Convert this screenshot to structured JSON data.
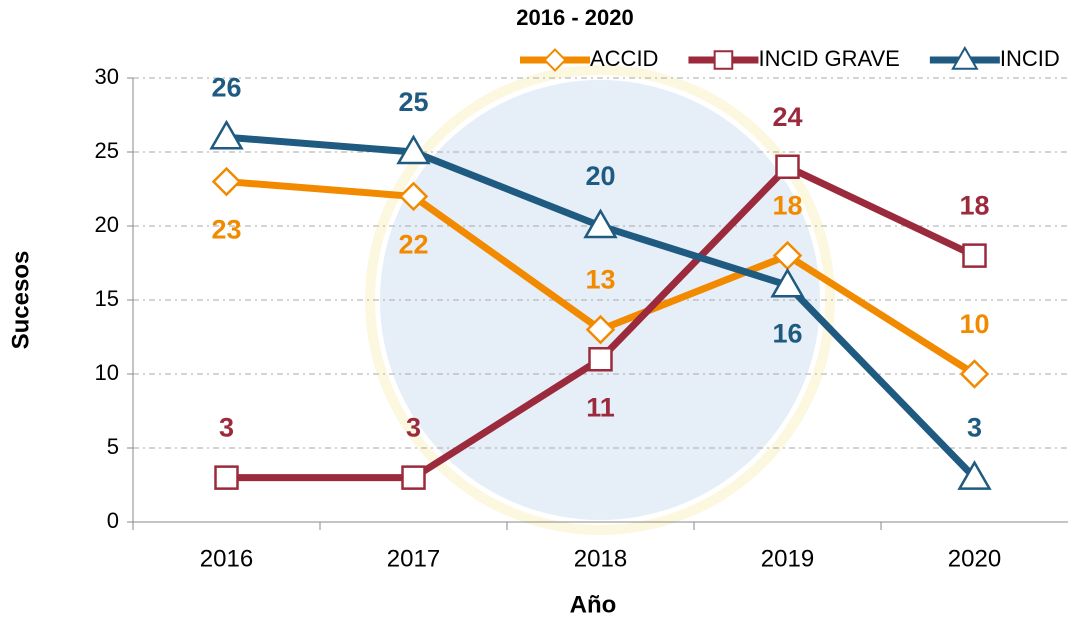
{
  "chart_data": {
    "type": "line",
    "title": "2016 - 2020",
    "x_label": "Año",
    "y_label": "Sucesos",
    "categories": [
      "2016",
      "2017",
      "2018",
      "2019",
      "2020"
    ],
    "series": [
      {
        "name": "ACCID",
        "color": "#f28a00",
        "marker": "diamond",
        "values": [
          23,
          22,
          13,
          18,
          10
        ]
      },
      {
        "name": "INCID GRAVE",
        "color": "#9b2a3c",
        "marker": "square",
        "values": [
          3,
          3,
          11,
          24,
          18
        ]
      },
      {
        "name": "INCID",
        "color": "#1f5a80",
        "marker": "triangle",
        "values": [
          26,
          25,
          20,
          16,
          3
        ]
      }
    ],
    "ylim": [
      0,
      30
    ],
    "yticks": [
      0,
      5,
      10,
      15,
      20,
      25,
      30
    ],
    "grid": true,
    "legend": "top-right"
  }
}
